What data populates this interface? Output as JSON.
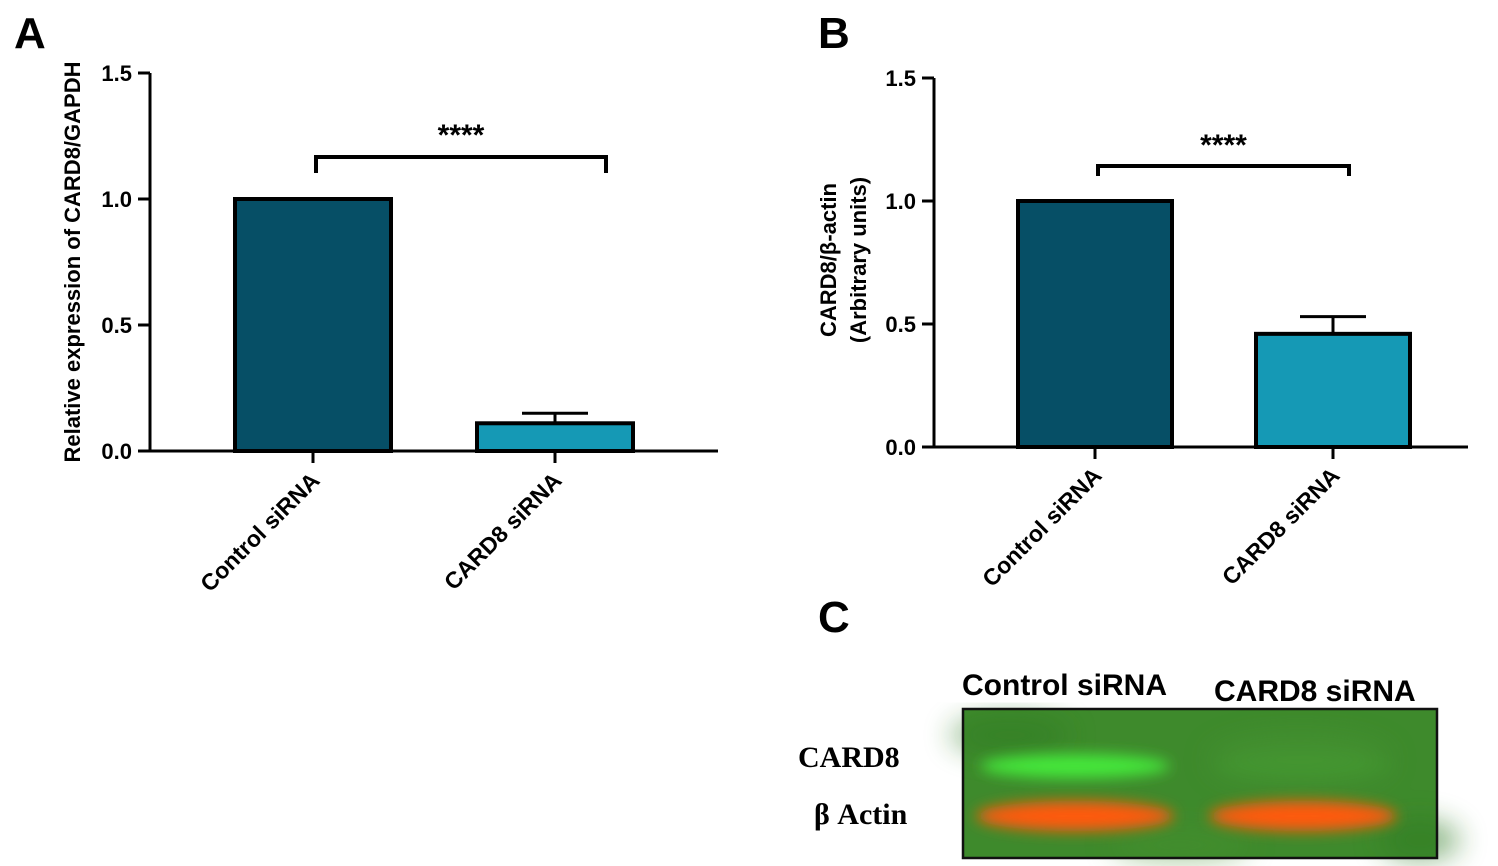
{
  "panels": {
    "a": {
      "letter": "A"
    },
    "b": {
      "letter": "B"
    },
    "c": {
      "letter": "C"
    }
  },
  "colors": {
    "control_bar": "#064f66",
    "card8_bar": "#1599b5",
    "blot_background": "#3e8a2c",
    "blot_green_band": "#45e83a",
    "blot_orange_band": "#ff5a10"
  },
  "chart_data": [
    {
      "id": "A",
      "type": "bar",
      "categories": [
        "Control siRNA",
        "CARD8 siRNA"
      ],
      "values": [
        1.0,
        0.11
      ],
      "error": [
        0,
        0.04
      ],
      "ylabel": "Relative  expression of CARD8/GAPDH",
      "ylabel_lines": [
        "Relative  expression of CARD8/GAPDH"
      ],
      "ylim": [
        0,
        1.5
      ],
      "yticks": [
        "0.0",
        "0.5",
        "1.0",
        "1.5"
      ],
      "significance": "****",
      "grid": false
    },
    {
      "id": "B",
      "type": "bar",
      "categories": [
        "Control siRNA",
        "CARD8 siRNA"
      ],
      "values": [
        1.0,
        0.46
      ],
      "error": [
        0,
        0.07
      ],
      "ylabel": "CARD8/β-actin (Arbitrary units)",
      "ylabel_lines": [
        "CARD8/β-actin",
        "(Arbitrary units)"
      ],
      "ylim": [
        0,
        1.5
      ],
      "yticks": [
        "0.0",
        "0.5",
        "1.0",
        "1.5"
      ],
      "significance": "****",
      "grid": false
    }
  ],
  "blot": {
    "column_labels": [
      "Control siRNA",
      "CARD8 siRNA"
    ],
    "row_labels": [
      "CARD8",
      "β Actin"
    ],
    "band_intensity": {
      "CARD8": [
        1.0,
        0.05
      ],
      "β Actin": [
        1.0,
        1.0
      ]
    }
  }
}
